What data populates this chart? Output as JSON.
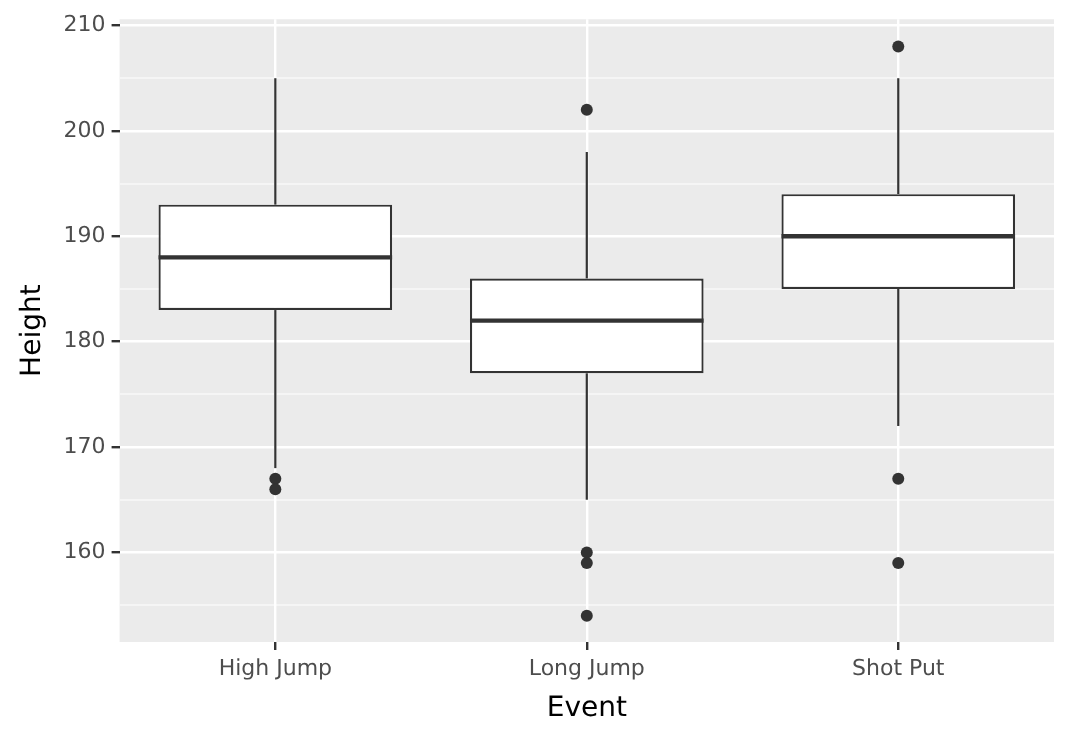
{
  "chart_data": {
    "type": "box",
    "categories": [
      "High Jump",
      "Long Jump",
      "Shot Put"
    ],
    "xlabel": "Event",
    "ylabel": "Height",
    "ylim": [
      151.5,
      210.6
    ],
    "yticks": [
      {
        "value": 155,
        "label": null
      },
      160,
      {
        "value": 165,
        "label": null
      },
      170,
      {
        "value": 175,
        "label": null
      },
      180,
      {
        "value": 185,
        "label": null
      },
      190,
      {
        "value": 195,
        "label": null
      },
      200,
      {
        "value": 205,
        "label": null
      },
      210
    ],
    "grid": true,
    "legend": false,
    "boxes": [
      {
        "low": 168,
        "q1": 183,
        "median": 188,
        "q3": 193,
        "high": 205,
        "outliers": [
          167,
          166
        ]
      },
      {
        "low": 165,
        "q1": 177,
        "median": 182,
        "q3": 186,
        "high": 198,
        "outliers": [
          202,
          160,
          159,
          154
        ]
      },
      {
        "low": 172,
        "q1": 185,
        "median": 190,
        "q3": 194,
        "high": 205,
        "outliers": [
          208,
          167,
          159
        ]
      }
    ]
  }
}
